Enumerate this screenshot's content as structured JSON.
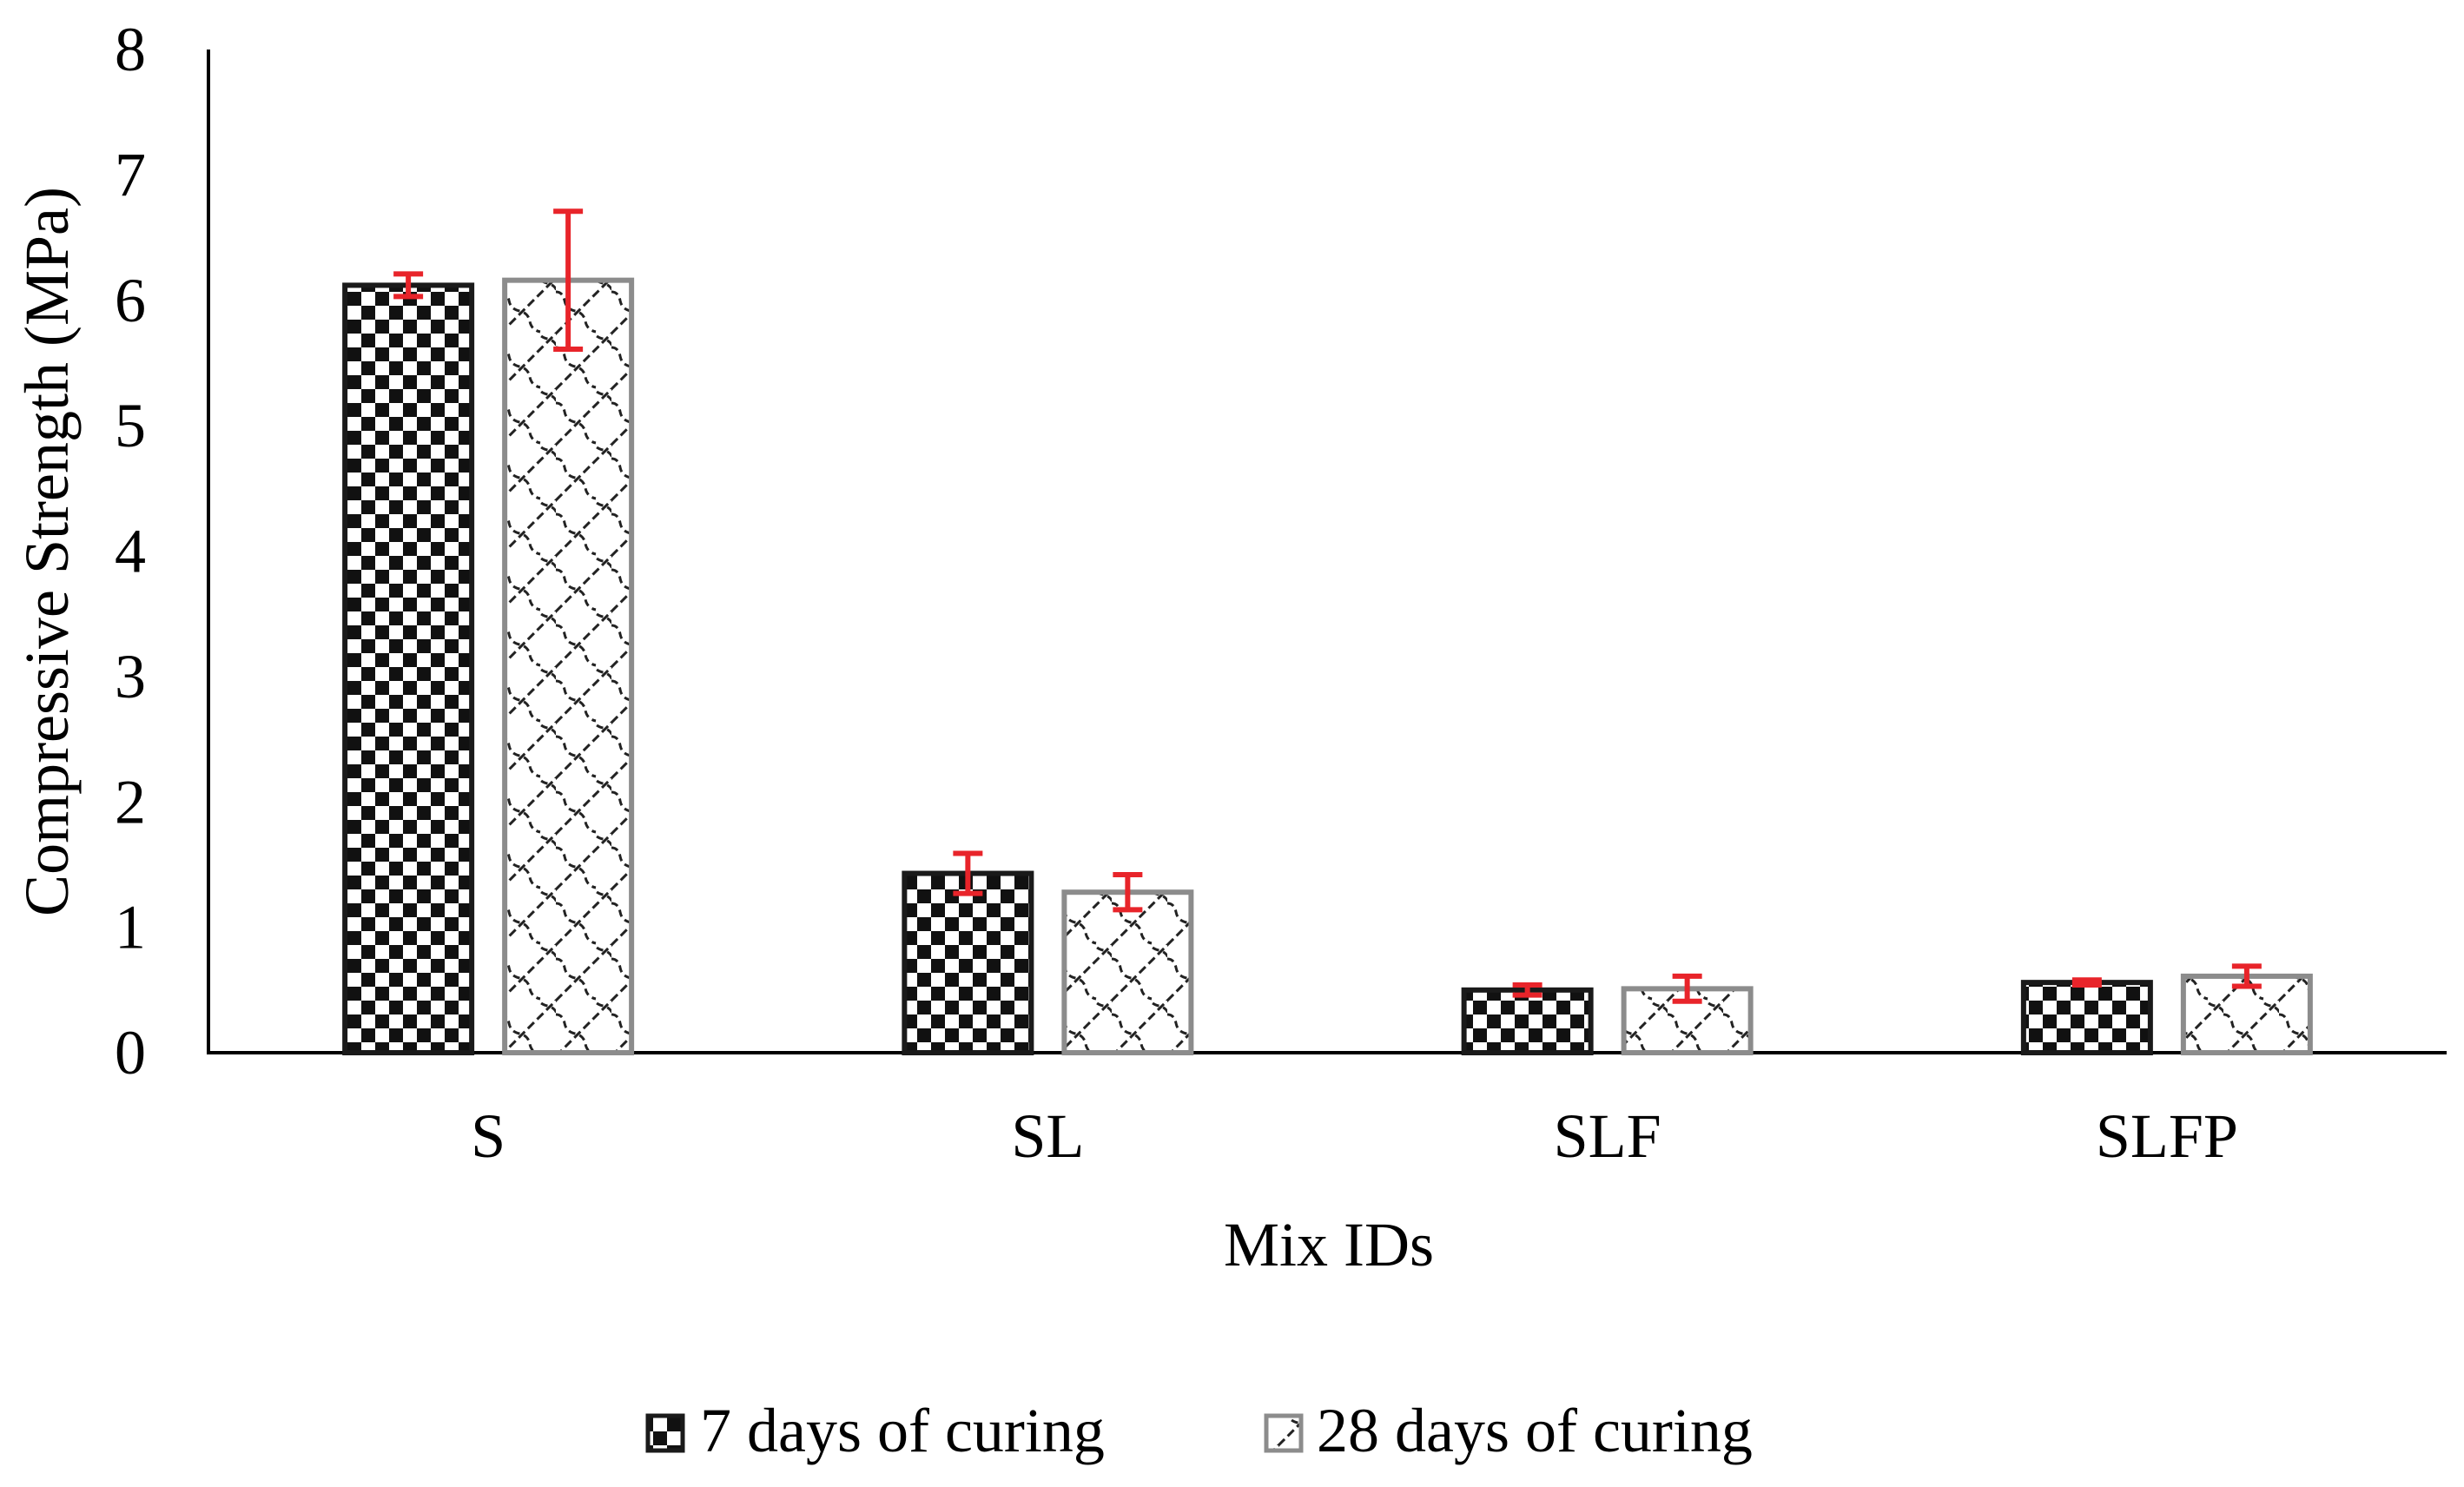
{
  "chart_data": {
    "type": "bar",
    "title": "",
    "xlabel": "Mix IDs",
    "ylabel": "Compressive Strength (MPa)",
    "ylim": [
      0,
      8
    ],
    "yticks": [
      "0",
      "1",
      "2",
      "3",
      "4",
      "5",
      "6",
      "7",
      "8"
    ],
    "grid": false,
    "legend_position": "bottom",
    "categories": [
      "S",
      "SL",
      "SLF",
      "SLFP"
    ],
    "series": [
      {
        "name": "7 days of curing",
        "pattern": "checkerboard",
        "border_color": "#1a1a1a",
        "values": [
          6.12,
          1.43,
          0.5,
          0.56
        ],
        "errors": [
          0.09,
          0.16,
          0.04,
          0.02
        ]
      },
      {
        "name": "28 days of curing",
        "pattern": "diagonal-weave",
        "border_color": "#8c8c8c",
        "values": [
          6.16,
          1.28,
          0.51,
          0.61
        ],
        "errors": [
          0.55,
          0.14,
          0.1,
          0.08
        ]
      }
    ],
    "error_bar_color": "#e8242a"
  }
}
